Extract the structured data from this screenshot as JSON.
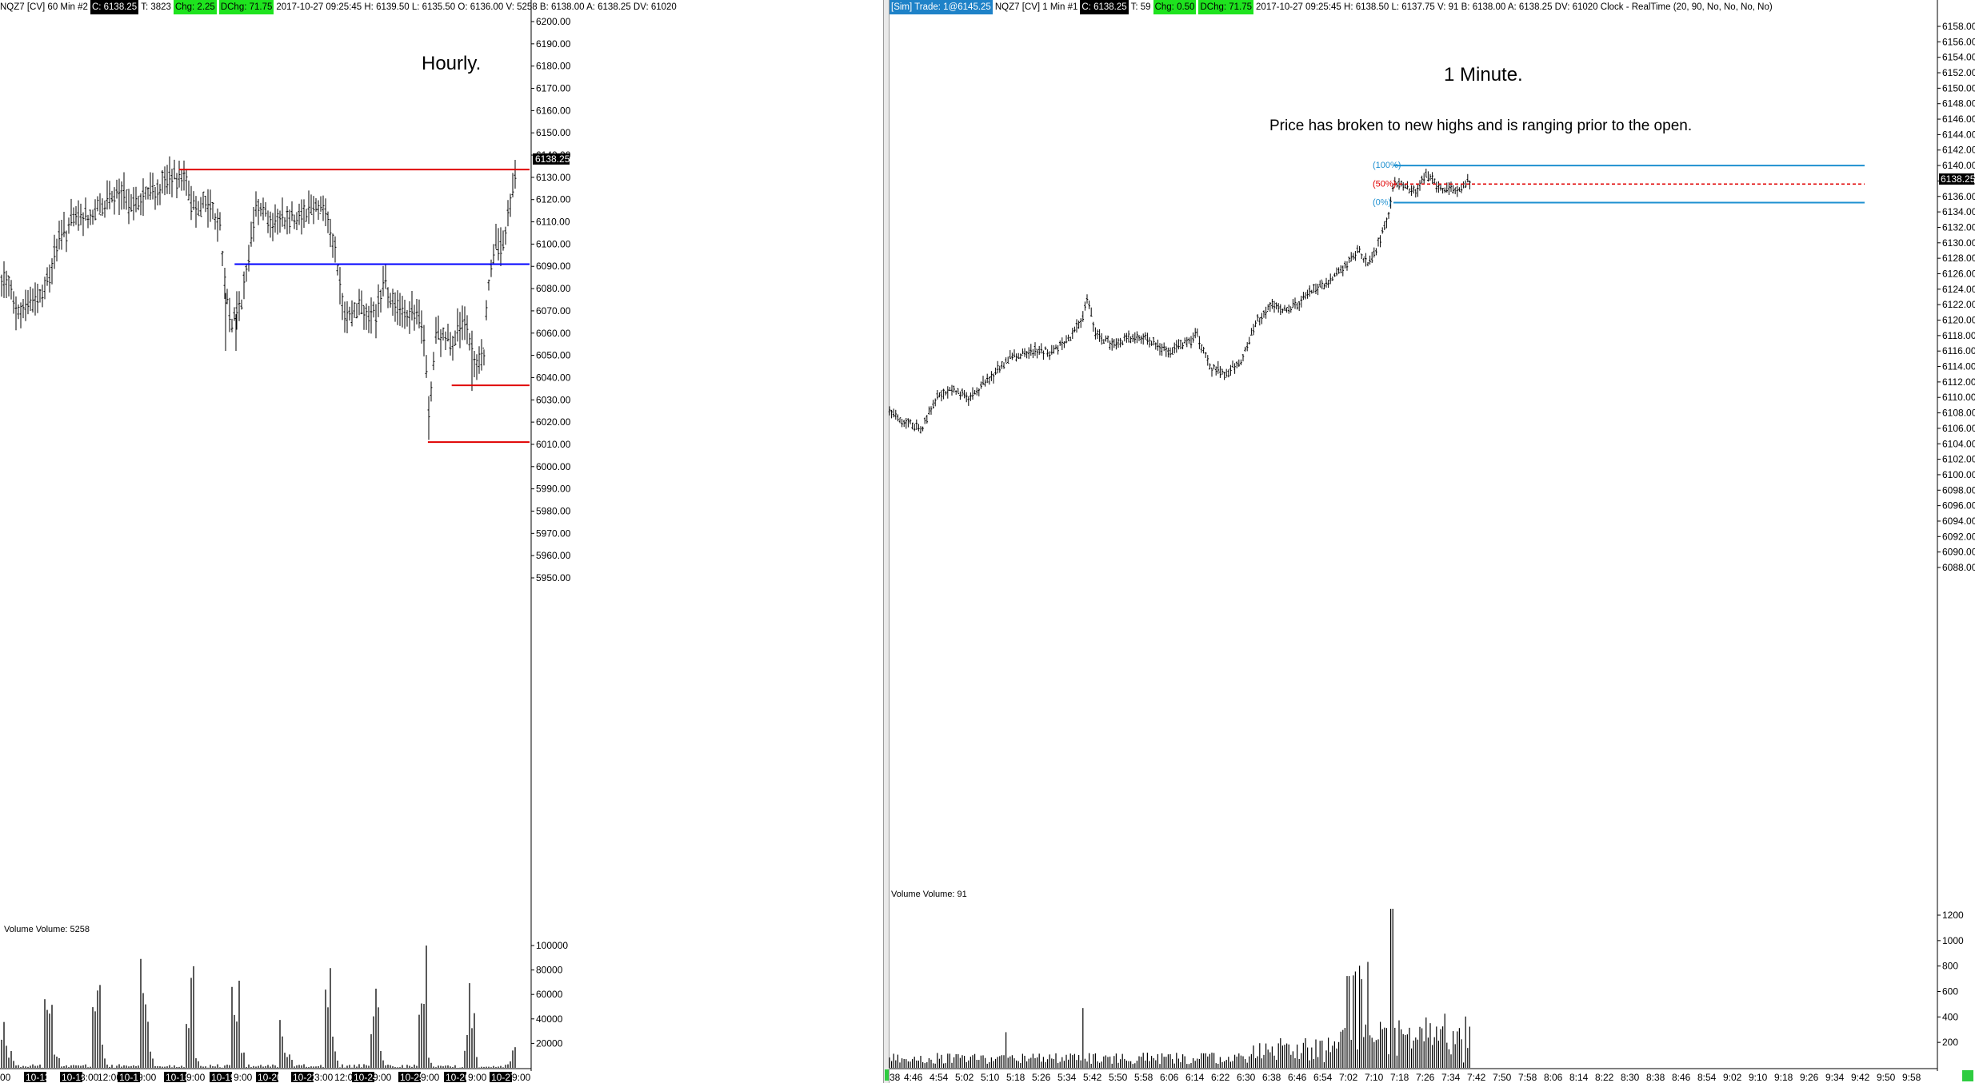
{
  "left": {
    "header": [
      {
        "text": "NQZ7 [CV]  60 Min   #2",
        "style": "plain"
      },
      {
        "text": "C: 6138.25",
        "style": "black"
      },
      {
        "text": "T: 3823",
        "style": "plain"
      },
      {
        "text": "Chg: 2.25",
        "style": "green"
      },
      {
        "text": "DChg: 71.75",
        "style": "green"
      },
      {
        "text": "2017-10-27 09:25:45 H: 6139.50 L: 6135.50 O: 6136.00 V: 5258 B: 6138.00 A: 6138.25 DV: 61020",
        "style": "plain"
      }
    ],
    "annotation": "Hourly.",
    "price_axis": [
      "6200.00",
      "6190.00",
      "6180.00",
      "6170.00",
      "6160.00",
      "6150.00",
      "6140.00",
      "6130.00",
      "6120.00",
      "6110.00",
      "6100.00",
      "6090.00",
      "6080.00",
      "6070.00",
      "6060.00",
      "6050.00",
      "6040.00",
      "6030.00",
      "6020.00",
      "6010.00",
      "6000.00",
      "5990.00",
      "5980.00",
      "5970.00",
      "5960.00",
      "5950.00"
    ],
    "last_price": "6138.25",
    "volume_label": "Volume  Volume: 5258",
    "volume_axis": [
      "100000",
      "80000",
      "60000",
      "40000",
      "20000"
    ],
    "time_axis": [
      {
        "label": "00",
        "boxed": false
      },
      {
        "label": "10-13",
        "boxed": true
      },
      {
        "label": "10-15",
        "boxed": true
      },
      {
        "label": "3:00",
        "boxed": false
      },
      {
        "label": "12:00",
        "boxed": false
      },
      {
        "label": "10-17",
        "boxed": true
      },
      {
        "label": "9:00",
        "boxed": false
      },
      {
        "label": "10-18",
        "boxed": true
      },
      {
        "label": "9:00",
        "boxed": false
      },
      {
        "label": "10-19",
        "boxed": true
      },
      {
        "label": "9:00",
        "boxed": false
      },
      {
        "label": "10-20",
        "boxed": true
      },
      {
        "label": "10-22",
        "boxed": true
      },
      {
        "label": "3:00",
        "boxed": false
      },
      {
        "label": "12:00",
        "boxed": false
      },
      {
        "label": "10-24",
        "boxed": true
      },
      {
        "label": "9:00",
        "boxed": false
      },
      {
        "label": "10-25",
        "boxed": true
      },
      {
        "label": "9:00",
        "boxed": false
      },
      {
        "label": "10-26",
        "boxed": true
      },
      {
        "label": "9:00",
        "boxed": false
      },
      {
        "label": "10-27",
        "boxed": true
      },
      {
        "label": "9:00",
        "boxed": false
      }
    ],
    "lines": [
      {
        "name": "resistance-line",
        "color": "#e00000",
        "price": 6133.5,
        "from": 0.335,
        "to": 1.0
      },
      {
        "name": "midrange-line",
        "color": "#0000ff",
        "price": 6091.0,
        "from": 0.44,
        "to": 1.0
      },
      {
        "name": "support-line-upper",
        "color": "#e00000",
        "price": 6036.5,
        "from": 0.85,
        "to": 1.0
      },
      {
        "name": "support-line-lower",
        "color": "#e00000",
        "price": 6011.0,
        "from": 0.805,
        "to": 1.0
      }
    ]
  },
  "right": {
    "header": [
      {
        "text": "[Sim]  Trade: 1@6145.25",
        "style": "blue"
      },
      {
        "text": "NQZ7 [CV]  1 Min   #1",
        "style": "plain"
      },
      {
        "text": "C: 6138.25",
        "style": "black"
      },
      {
        "text": "T: 59",
        "style": "plain"
      },
      {
        "text": "Chg: 0.50",
        "style": "green"
      },
      {
        "text": "DChg: 71.75",
        "style": "green"
      },
      {
        "text": "2017-10-27 09:25:45 H: 6138.50 L: 6137.75 V: 91 B: 6138.00 A: 6138.25 DV: 61020  Clock - RealTime  (20, 90, No, No, No, No)",
        "style": "plain"
      }
    ],
    "annotation": "1 Minute.",
    "sub_annotation": "Price has broken to new highs and is ranging prior to the open.",
    "price_axis": [
      "6158.00",
      "6156.00",
      "6154.00",
      "6152.00",
      "6150.00",
      "6148.00",
      "6146.00",
      "6144.00",
      "6142.00",
      "6140.00",
      "6138.00",
      "6136.00",
      "6134.00",
      "6132.00",
      "6130.00",
      "6128.00",
      "6126.00",
      "6124.00",
      "6122.00",
      "6120.00",
      "6118.00",
      "6116.00",
      "6114.00",
      "6112.00",
      "6110.00",
      "6108.00",
      "6106.00",
      "6104.00",
      "6102.00",
      "6100.00",
      "6098.00",
      "6096.00",
      "6094.00",
      "6092.00",
      "6090.00",
      "6088.00"
    ],
    "last_price": "6138.25",
    "volume_label": "Volume  Volume: 91",
    "volume_axis": [
      "1200",
      "1000",
      "800",
      "600",
      "400",
      "200"
    ],
    "time_axis": [
      "38",
      "4:46",
      "4:54",
      "5:02",
      "5:10",
      "5:18",
      "5:26",
      "5:34",
      "5:42",
      "5:50",
      "5:58",
      "6:06",
      "6:14",
      "6:22",
      "6:30",
      "6:38",
      "6:46",
      "6:54",
      "7:02",
      "7:10",
      "7:18",
      "7:26",
      "7:34",
      "7:42",
      "7:50",
      "7:58",
      "8:06",
      "8:14",
      "8:22",
      "8:30",
      "8:38",
      "8:46",
      "8:54",
      "9:02",
      "9:10",
      "9:18",
      "9:26",
      "9:34",
      "9:42",
      "9:50",
      "9:58"
    ],
    "fib": [
      {
        "label": "(100%)",
        "price": 6140.0,
        "color": "#1e90d0",
        "dashed": false
      },
      {
        "label": "(50%)",
        "price": 6137.6,
        "color": "#e00000",
        "dashed": true
      },
      {
        "label": "(0%)",
        "price": 6135.2,
        "color": "#1e90d0",
        "dashed": false
      }
    ]
  },
  "colors": {
    "bar": "#000000",
    "axis_box": "#000000",
    "green": "#1ee31e"
  }
}
